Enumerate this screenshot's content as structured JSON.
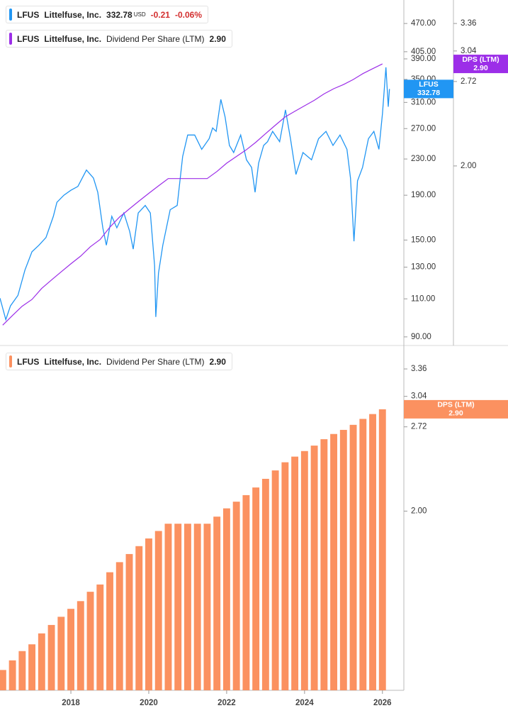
{
  "chart_data": [
    {
      "type": "line",
      "symbol": "LFUS",
      "company": "Littelfuse, Inc.",
      "currency": "USD",
      "change": -0.21,
      "change_pct": "-0.06%",
      "log_scale": true,
      "xlim": [
        2016.18,
        2026.55
      ],
      "ylim": [
        86,
        532
      ],
      "yticks": [
        {
          "value": 90,
          "label": "90.00"
        },
        {
          "value": 110,
          "label": "110.00"
        },
        {
          "value": 130,
          "label": "130.00"
        },
        {
          "value": 150,
          "label": "150.00"
        },
        {
          "value": 190,
          "label": "190.00"
        },
        {
          "value": 230,
          "label": "230.00"
        },
        {
          "value": 270,
          "label": "270.00"
        },
        {
          "value": 310,
          "label": "310.00"
        },
        {
          "value": 350,
          "label": "350.00"
        },
        {
          "value": 390,
          "label": "390.00"
        },
        {
          "value": 405,
          "label": "405.00"
        },
        {
          "value": 470,
          "label": "470.00"
        }
      ],
      "y2lim": [
        1.04,
        3.66
      ],
      "y2ticks": [
        {
          "value": 2,
          "label": "2.00"
        },
        2.72,
        3.04,
        3.36
      ],
      "x": [
        2016.18,
        2016.33,
        2016.45,
        2016.64,
        2016.82,
        2017.0,
        2017.18,
        2017.36,
        2017.55,
        2017.64,
        2017.82,
        2018.0,
        2018.18,
        2018.4,
        2018.58,
        2018.69,
        2018.82,
        2018.91,
        2019.05,
        2019.18,
        2019.36,
        2019.51,
        2019.6,
        2019.73,
        2019.91,
        2020.04,
        2020.15,
        2020.18,
        2020.25,
        2020.36,
        2020.55,
        2020.73,
        2020.87,
        2021.0,
        2021.18,
        2021.36,
        2021.55,
        2021.64,
        2021.73,
        2021.85,
        2021.96,
        2022.07,
        2022.18,
        2022.36,
        2022.51,
        2022.64,
        2022.73,
        2022.82,
        2022.95,
        2023.05,
        2023.18,
        2023.36,
        2023.51,
        2023.64,
        2023.78,
        2023.96,
        2024.18,
        2024.36,
        2024.55,
        2024.73,
        2024.91,
        2025.09,
        2025.18,
        2025.27,
        2025.36,
        2025.49,
        2025.64,
        2025.78,
        2025.91,
        2026.0,
        2026.09,
        2026.15,
        2026.18
      ],
      "series": [
        {
          "name": "Littelfuse, Inc.",
          "color": "#2196f3",
          "values": [
            110.4,
            98.6,
            106,
            112,
            128,
            141,
            146,
            152,
            170,
            183,
            190,
            195,
            199,
            217,
            208,
            193,
            160,
            146,
            170,
            160,
            173,
            157,
            143,
            173,
            180,
            173,
            131,
            100,
            126,
            146,
            176,
            180,
            233,
            261,
            261,
            242,
            256,
            271,
            266,
            315,
            287,
            247,
            238,
            261,
            229,
            220,
            193,
            225,
            247,
            252,
            266,
            252,
            298,
            256,
            212,
            238,
            229,
            256,
            266,
            247,
            261,
            242,
            208,
            149,
            205,
            220,
            256,
            266,
            242,
            292,
            373,
            303,
            332.78
          ]
        },
        {
          "name": "Dividend Per Share (LTM)",
          "color": "#9c2ee8",
          "axis": "y2",
          "badge": "DPS (LTM)",
          "last_label": "2.90",
          "x": [
            2016.25,
            2016.5,
            2016.75,
            2017.0,
            2017.25,
            2017.5,
            2017.75,
            2018.0,
            2018.25,
            2018.5,
            2018.75,
            2019.0,
            2019.25,
            2019.5,
            2019.75,
            2020.0,
            2020.25,
            2020.5,
            2020.75,
            2021.0,
            2021.25,
            2021.5,
            2021.75,
            2022.0,
            2022.25,
            2022.5,
            2022.75,
            2023.0,
            2023.25,
            2023.5,
            2023.75,
            2024.0,
            2024.25,
            2024.5,
            2024.75,
            2025.0,
            2025.25,
            2025.5,
            2025.75,
            2026.0
          ],
          "values": [
            1.12,
            1.16,
            1.2,
            1.23,
            1.28,
            1.32,
            1.36,
            1.4,
            1.44,
            1.49,
            1.53,
            1.6,
            1.66,
            1.71,
            1.76,
            1.81,
            1.86,
            1.91,
            1.91,
            1.91,
            1.91,
            1.91,
            1.96,
            2.02,
            2.07,
            2.12,
            2.18,
            2.25,
            2.32,
            2.39,
            2.44,
            2.49,
            2.54,
            2.6,
            2.65,
            2.69,
            2.74,
            2.8,
            2.85,
            2.9
          ]
        }
      ]
    },
    {
      "type": "bar",
      "symbol": "LFUS",
      "company": "Littelfuse, Inc.",
      "name": "Dividend Per Share (LTM)",
      "badge": "DPS (LTM)",
      "last_label": "2.90",
      "color": "#fb9160",
      "log_scale": true,
      "xlim": [
        2016.18,
        2026.55
      ],
      "xticks": [
        2018,
        2020,
        2022,
        2024,
        2026
      ],
      "ylim": [
        1.04,
        3.66
      ],
      "yticks": [
        {
          "value": 2,
          "label": "2.00"
        },
        2.72,
        3.04,
        3.36
      ],
      "x": [
        2016.25,
        2016.5,
        2016.75,
        2017.0,
        2017.25,
        2017.5,
        2017.75,
        2018.0,
        2018.25,
        2018.5,
        2018.75,
        2019.0,
        2019.25,
        2019.5,
        2019.75,
        2020.0,
        2020.25,
        2020.5,
        2020.75,
        2021.0,
        2021.25,
        2021.5,
        2021.75,
        2022.0,
        2022.25,
        2022.5,
        2022.75,
        2023.0,
        2023.25,
        2023.5,
        2023.75,
        2024.0,
        2024.25,
        2024.5,
        2024.75,
        2025.0,
        2025.25,
        2025.5,
        2025.75,
        2026.0
      ],
      "values": [
        1.12,
        1.16,
        1.2,
        1.23,
        1.28,
        1.32,
        1.36,
        1.4,
        1.44,
        1.49,
        1.53,
        1.6,
        1.66,
        1.71,
        1.76,
        1.81,
        1.86,
        1.91,
        1.91,
        1.91,
        1.91,
        1.91,
        1.96,
        2.02,
        2.07,
        2.12,
        2.18,
        2.25,
        2.32,
        2.39,
        2.44,
        2.49,
        2.54,
        2.6,
        2.65,
        2.69,
        2.74,
        2.8,
        2.85,
        2.9
      ]
    }
  ]
}
